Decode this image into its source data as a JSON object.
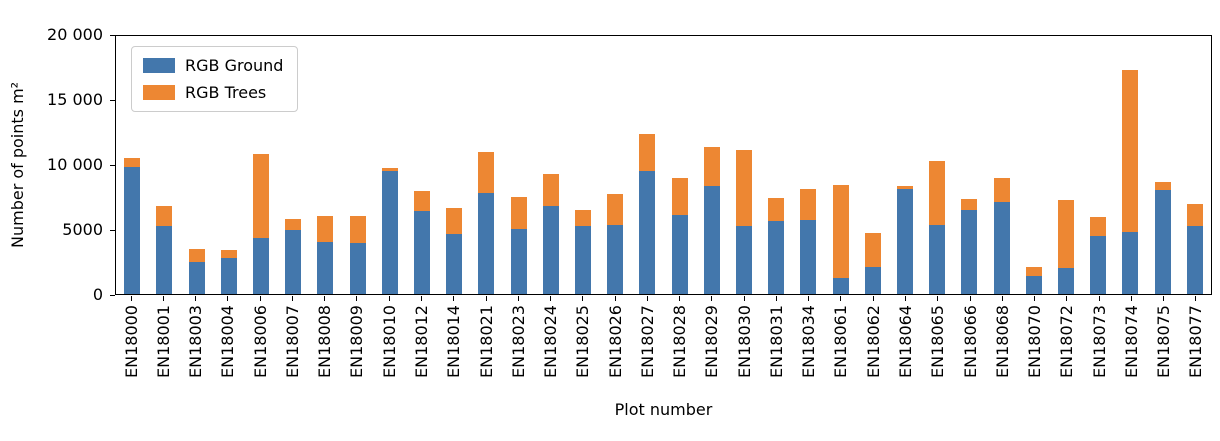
{
  "chart_data": {
    "type": "bar",
    "stacked": true,
    "title": "",
    "xlabel": "Plot number",
    "ylabel": "Number of points m²",
    "ylim": [
      0,
      20000
    ],
    "grid": false,
    "legend_position": "upper left",
    "yticks": [
      {
        "value": 0,
        "label": "0"
      },
      {
        "value": 5000,
        "label": "5000"
      },
      {
        "value": 10000,
        "label": "10 000"
      },
      {
        "value": 15000,
        "label": "15 000"
      },
      {
        "value": 20000,
        "label": "20 000"
      }
    ],
    "categories": [
      "EN18000",
      "EN18001",
      "EN18003",
      "EN18004",
      "EN18006",
      "EN18007",
      "EN18008",
      "EN18009",
      "EN18010",
      "EN18012",
      "EN18014",
      "EN18021",
      "EN18023",
      "EN18024",
      "EN18025",
      "EN18026",
      "EN18027",
      "EN18028",
      "EN18029",
      "EN18030",
      "EN18031",
      "EN18034",
      "EN18061",
      "EN18062",
      "EN18064",
      "EN18065",
      "EN18066",
      "EN18068",
      "EN18070",
      "EN18072",
      "EN18073",
      "EN18074",
      "EN18075",
      "EN18077"
    ],
    "series": [
      {
        "name": "RGB Ground",
        "key": "ground",
        "color": "#4377ac",
        "values": [
          9800,
          5200,
          2500,
          2800,
          4300,
          4900,
          4000,
          3900,
          9500,
          6400,
          4600,
          7800,
          5000,
          6800,
          5200,
          5300,
          9500,
          6100,
          8300,
          5200,
          5600,
          5700,
          1200,
          2100,
          8100,
          5300,
          6500,
          7100,
          1400,
          2000,
          4500,
          4800,
          8000,
          5200
        ]
      },
      {
        "name": "RGB Trees",
        "key": "trees",
        "color": "#ed8733",
        "values": [
          700,
          1600,
          1000,
          600,
          6500,
          900,
          2000,
          2100,
          200,
          1500,
          2000,
          3100,
          2500,
          2400,
          1300,
          2400,
          2800,
          2800,
          3000,
          5900,
          1800,
          2400,
          7200,
          2600,
          200,
          4900,
          800,
          1800,
          700,
          5200,
          1400,
          12400,
          600,
          1700
        ]
      }
    ]
  }
}
